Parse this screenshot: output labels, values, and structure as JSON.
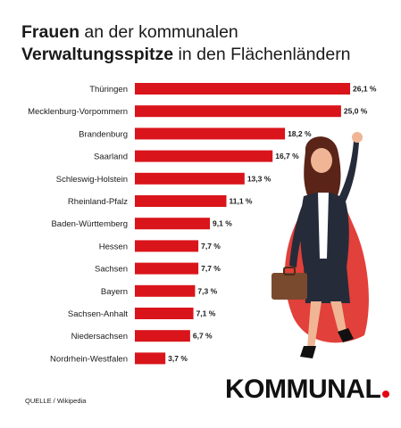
{
  "title": {
    "line1_bold": "Frauen",
    "line1_rest": " an der kommunalen",
    "line2_bold": "Verwaltungsspitze",
    "line2_rest": " in den Flächenländern"
  },
  "source": "QUELLE / Wikipedia",
  "brand": {
    "name": "KOMMUNAL",
    "dot_color": "#e30613"
  },
  "colors": {
    "bar": "#d9141b",
    "cape": "#e2403a"
  },
  "illustration": {
    "icon": "superhero-businesswoman-illustration"
  },
  "chart_data": {
    "type": "bar",
    "orientation": "horizontal",
    "categories": [
      "Thüringen",
      "Mecklenburg-Vorpommern",
      "Brandenburg",
      "Saarland",
      "Schleswig-Holstein",
      "Rheinland-Pfalz",
      "Baden-Württemberg",
      "Hessen",
      "Sachsen",
      "Bayern",
      "Sachsen-Anhalt",
      "Niedersachsen",
      "Nordrhein-Westfalen"
    ],
    "values": [
      26.1,
      25.0,
      18.2,
      16.7,
      13.3,
      11.1,
      9.1,
      7.7,
      7.7,
      7.3,
      7.1,
      6.7,
      3.7
    ],
    "value_labels": [
      "26,1 %",
      "25,0 %",
      "18,2 %",
      "16,7 %",
      "13,3 %",
      "11,1 %",
      "9,1 %",
      "7,7 %",
      "7,7 %",
      "7,3 %",
      "7,1 %",
      "6,7 %",
      "3,7 %"
    ],
    "unit": "%",
    "grid": false,
    "legend": "none"
  }
}
